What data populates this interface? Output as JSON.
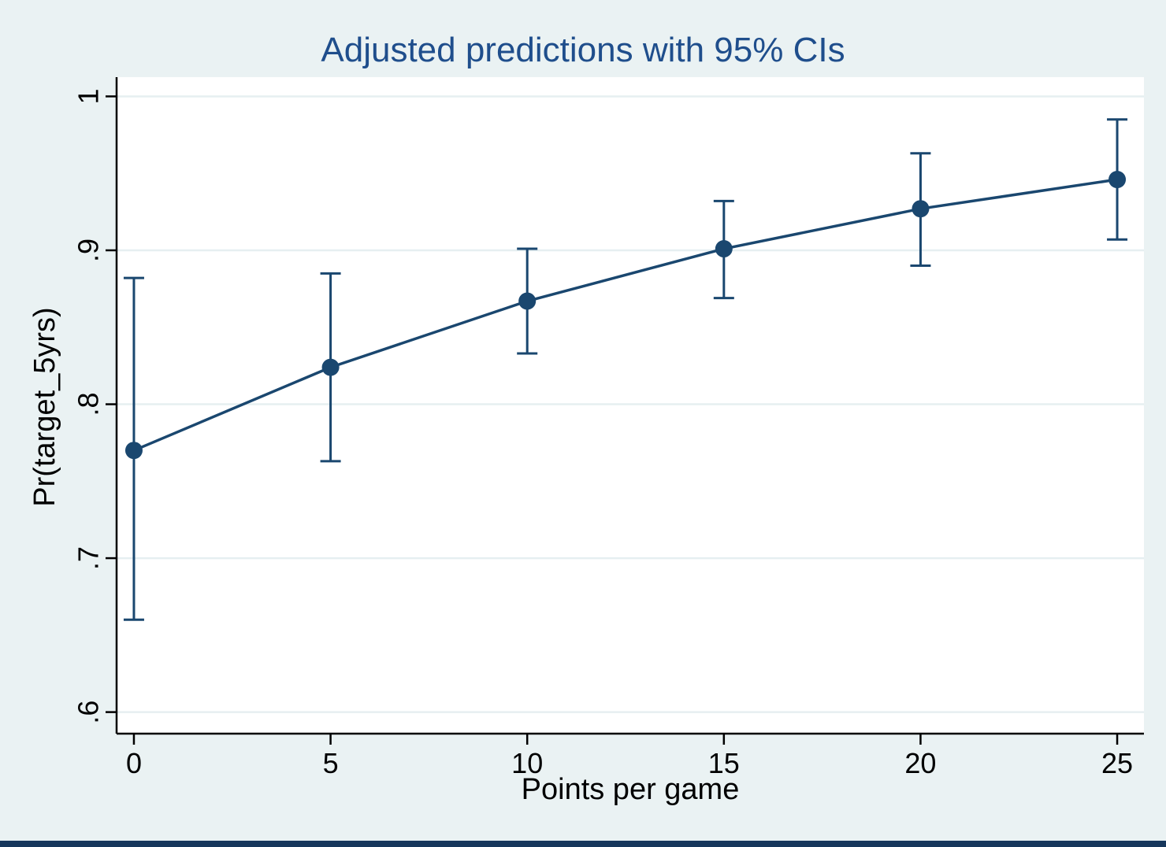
{
  "window": {
    "bottom_bar_color": "#16375c"
  },
  "chart": {
    "background_color": "#eaf2f3",
    "plot_background": "#ffffff",
    "grid_color": "#e6eff1",
    "axis_color": "#000000",
    "series_color": "#1a476f",
    "title_color": "#1f4e8c"
  },
  "chart_data": {
    "type": "line",
    "title": "Adjusted predictions with 95% CIs",
    "xlabel": "Points per game",
    "ylabel": "Pr(target_5yrs)",
    "x": [
      0,
      5,
      10,
      15,
      20,
      25
    ],
    "series": [
      {
        "name": "Adjusted prediction",
        "values": [
          0.77,
          0.824,
          0.867,
          0.901,
          0.927,
          0.946
        ]
      }
    ],
    "ci_low": [
      0.66,
      0.763,
      0.833,
      0.869,
      0.89,
      0.907
    ],
    "ci_high": [
      0.882,
      0.885,
      0.901,
      0.932,
      0.963,
      0.985
    ],
    "xticks": {
      "values": [
        0,
        5,
        10,
        15,
        20,
        25
      ],
      "labels": [
        "0",
        "5",
        "10",
        "15",
        "20",
        "25"
      ]
    },
    "yticks": {
      "values": [
        0.6,
        0.7,
        0.8,
        0.9,
        1.0
      ],
      "labels": [
        ".6",
        ".7",
        ".8",
        ".9",
        "1"
      ]
    },
    "xlim": [
      -0.44,
      25.68
    ],
    "ylim": [
      0.586,
      1.0125
    ],
    "grid": true,
    "legend": "none",
    "marker": "circle",
    "error_bars": "95% CI"
  }
}
